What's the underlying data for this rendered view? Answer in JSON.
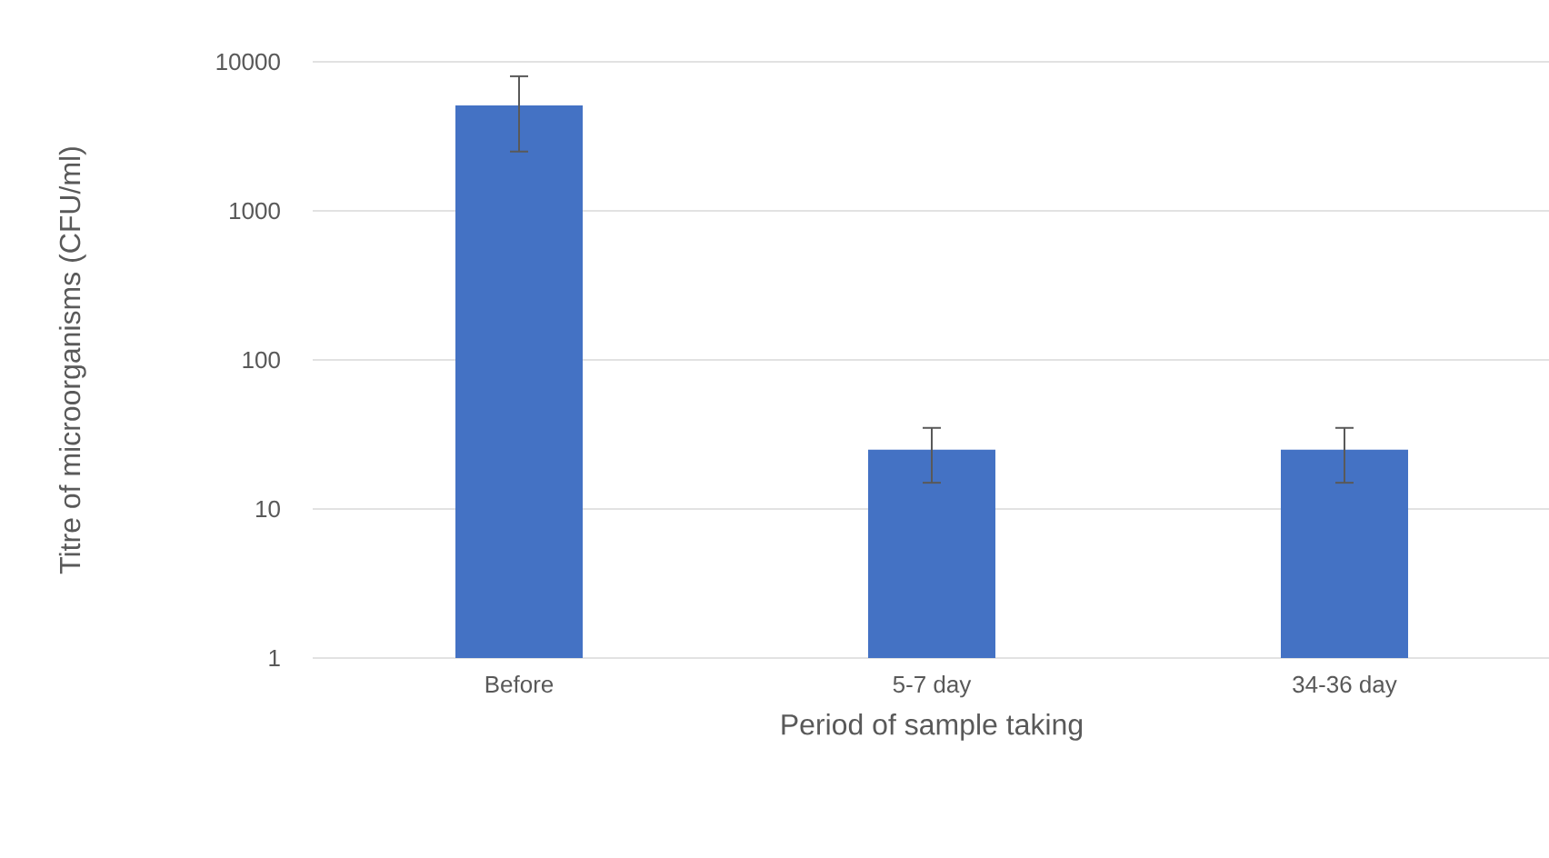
{
  "chart_data": {
    "type": "bar",
    "xlabel": "Period of sample taking",
    "ylabel": "Titre of microorganisms (CFU/ml)",
    "categories": [
      "Before",
      "5-7 day",
      "34-36 day"
    ],
    "values": [
      5100,
      25,
      25
    ],
    "errors": [
      [
        2500,
        8000
      ],
      [
        15,
        35
      ],
      [
        15,
        35
      ]
    ],
    "color": "#4472c4",
    "log": true,
    "ylim": [
      1,
      10000
    ],
    "yticks": [
      1,
      10,
      100,
      1000,
      10000
    ],
    "grid": "y"
  }
}
